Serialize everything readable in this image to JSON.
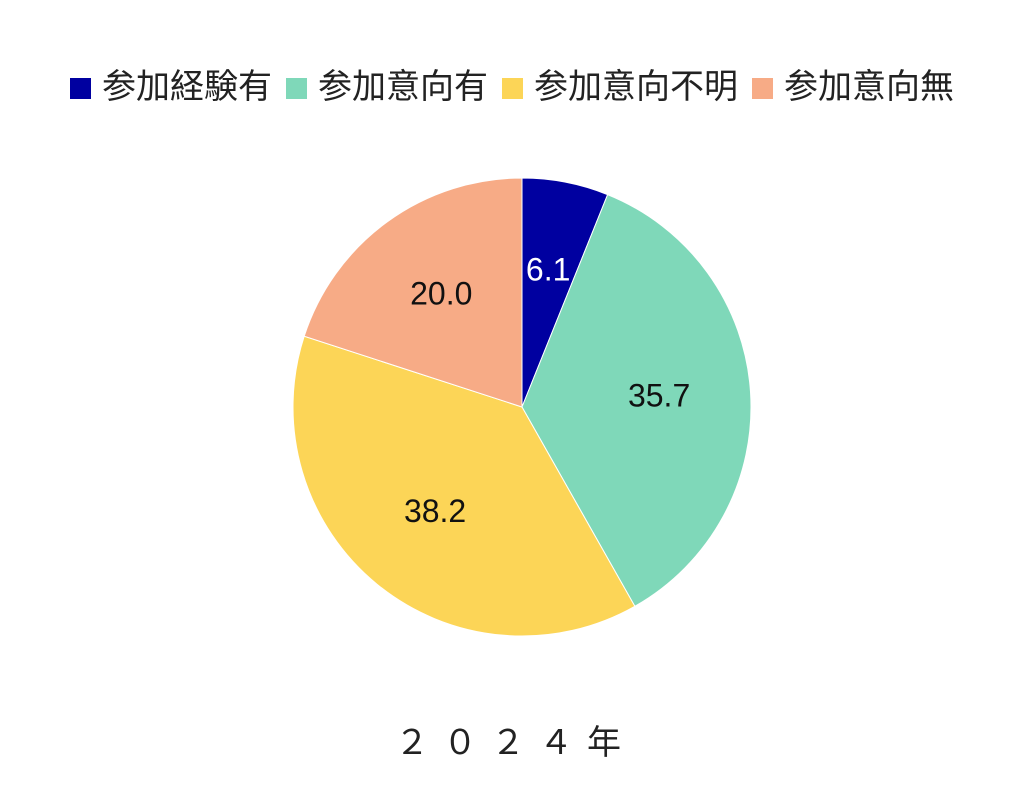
{
  "chart_data": {
    "type": "pie",
    "categories": [
      "参加経験有",
      "参加意向有",
      "参加意向不明",
      "参加意向無"
    ],
    "values": [
      6.1,
      35.7,
      38.2,
      20.0
    ],
    "value_labels": [
      "6.1",
      "35.7",
      "38.2",
      "20.0"
    ],
    "colors": [
      "#0000a0",
      "#7fd8b9",
      "#fcd557",
      "#f7ab86"
    ],
    "xlabel": "２０２４年",
    "legend": "top"
  }
}
